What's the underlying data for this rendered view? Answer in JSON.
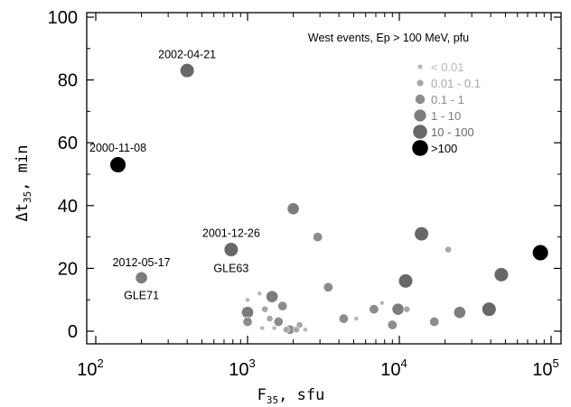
{
  "chart_data": {
    "type": "scatter",
    "title": "",
    "xlabel": {
      "base": "F",
      "sub": "35",
      "unit": ", sfu"
    },
    "ylabel": {
      "base": "Δt",
      "sub": "35",
      "unit": ", min"
    },
    "x_scale": "log",
    "xlim": [
      100,
      100000
    ],
    "ylim": [
      0,
      100
    ],
    "x_ticks": [
      {
        "value": 100,
        "base": "10",
        "exp": "2"
      },
      {
        "value": 1000,
        "base": "10",
        "exp": "3"
      },
      {
        "value": 10000,
        "base": "10",
        "exp": "4"
      },
      {
        "value": 100000,
        "base": "10",
        "exp": "5"
      }
    ],
    "y_ticks": [
      0,
      20,
      40,
      60,
      80,
      100
    ],
    "grid": false,
    "legend": {
      "title": "West events, Ep > 100 MeV, pfu",
      "placement": "top-right",
      "entries": [
        {
          "label": "< 0.01",
          "color": "#b8b8b8",
          "category": 0
        },
        {
          "label": "0.01 - 0.1",
          "color": "#a8a8a8",
          "category": 1
        },
        {
          "label": "0.1 - 1",
          "color": "#8c8c8c",
          "category": 2
        },
        {
          "label": "1 - 10",
          "color": "#7c7c7c",
          "category": 3
        },
        {
          "label": "10 - 100",
          "color": "#686868",
          "category": 4
        },
        {
          "label": ">100",
          "color": "#000000",
          "category": 5
        }
      ]
    },
    "points": [
      {
        "x": 140,
        "y": 53,
        "category": 5
      },
      {
        "x": 400,
        "y": 83,
        "category": 4
      },
      {
        "x": 780,
        "y": 26,
        "category": 4
      },
      {
        "x": 200,
        "y": 17,
        "category": 3
      },
      {
        "x": 85000,
        "y": 25,
        "category": 5
      },
      {
        "x": 2000,
        "y": 39,
        "category": 3
      },
      {
        "x": 2900,
        "y": 30,
        "category": 2
      },
      {
        "x": 14000,
        "y": 31,
        "category": 4
      },
      {
        "x": 21000,
        "y": 26,
        "category": 1
      },
      {
        "x": 11000,
        "y": 16,
        "category": 4
      },
      {
        "x": 3400,
        "y": 14,
        "category": 2
      },
      {
        "x": 47000,
        "y": 18,
        "category": 4
      },
      {
        "x": 1450,
        "y": 11,
        "category": 3
      },
      {
        "x": 1000,
        "y": 6,
        "category": 3
      },
      {
        "x": 1000,
        "y": 3,
        "category": 2
      },
      {
        "x": 1000,
        "y": 10,
        "category": 0
      },
      {
        "x": 1200,
        "y": 12,
        "category": 0
      },
      {
        "x": 1300,
        "y": 7,
        "category": 1
      },
      {
        "x": 1400,
        "y": 4,
        "category": 1
      },
      {
        "x": 1600,
        "y": 3,
        "category": 2
      },
      {
        "x": 1700,
        "y": 8,
        "category": 2
      },
      {
        "x": 1250,
        "y": 1,
        "category": 0
      },
      {
        "x": 1500,
        "y": 1,
        "category": 0
      },
      {
        "x": 1800,
        "y": 0.5,
        "category": 1
      },
      {
        "x": 1900,
        "y": 0.5,
        "category": 2
      },
      {
        "x": 2100,
        "y": 0.5,
        "category": 1
      },
      {
        "x": 2200,
        "y": 2,
        "category": 1
      },
      {
        "x": 2400,
        "y": 0.5,
        "category": 0
      },
      {
        "x": 4300,
        "y": 4,
        "category": 2
      },
      {
        "x": 5200,
        "y": 4,
        "category": 0
      },
      {
        "x": 6800,
        "y": 7,
        "category": 2
      },
      {
        "x": 7700,
        "y": 9,
        "category": 0
      },
      {
        "x": 9000,
        "y": 2,
        "category": 2
      },
      {
        "x": 9800,
        "y": 7,
        "category": 3
      },
      {
        "x": 11200,
        "y": 7,
        "category": 1
      },
      {
        "x": 17000,
        "y": 3,
        "category": 2
      },
      {
        "x": 25000,
        "y": 6,
        "category": 3
      },
      {
        "x": 39000,
        "y": 7,
        "category": 4
      }
    ],
    "annotations": [
      {
        "text": "2002-04-21",
        "x": 400,
        "y": 83,
        "position": "above"
      },
      {
        "text": "2000-11-08",
        "x": 140,
        "y": 53,
        "position": "above"
      },
      {
        "text": "2001-12-26",
        "x": 780,
        "y": 26,
        "position": "above"
      },
      {
        "text": "GLE63",
        "x": 780,
        "y": 26,
        "position": "below"
      },
      {
        "text": "2012-05-17",
        "x": 200,
        "y": 17,
        "position": "above"
      },
      {
        "text": "GLE71",
        "x": 200,
        "y": 17,
        "position": "below"
      }
    ]
  }
}
